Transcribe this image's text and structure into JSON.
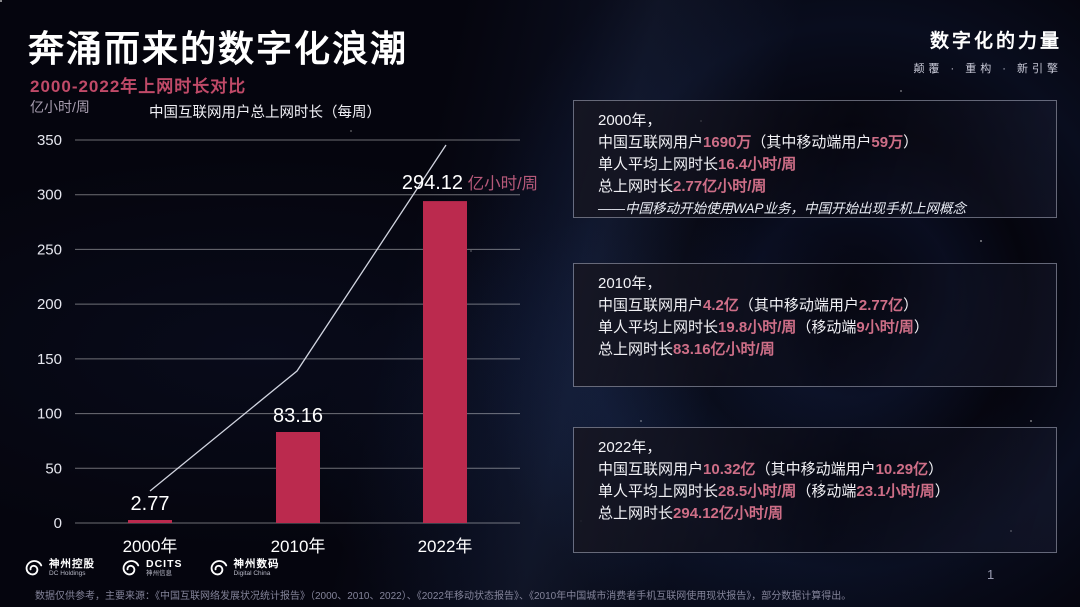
{
  "header": {
    "title": "奔涌而来的数字化浪潮",
    "subtitle": "2000-2022年上网时长对比"
  },
  "brand": {
    "title": "数字化的力量",
    "tagline": "颠覆 · 重构 · 新引擎"
  },
  "chart_data": {
    "type": "bar",
    "title": "中国互联网用户总上网时长（每周）",
    "unit_label": "亿小时/周",
    "categories": [
      "2000年",
      "2010年",
      "2022年"
    ],
    "values": [
      2.77,
      83.16,
      294.12
    ],
    "point_labels": [
      {
        "value": "2.77",
        "suffix": ""
      },
      {
        "value": "83.16",
        "suffix": ""
      },
      {
        "value": "294.12",
        "suffix": "亿小时/周"
      }
    ],
    "ylim": [
      0,
      350
    ],
    "yticks": [
      0,
      50,
      100,
      150,
      200,
      250,
      300,
      350
    ],
    "grid": true,
    "legend": false,
    "bar_color": "#bb2a4e",
    "trend_line": true
  },
  "panels": [
    {
      "title": "2000年，",
      "lines": [
        [
          {
            "t": "中国互联网用户"
          },
          {
            "t": "1690万",
            "accent": true
          },
          {
            "t": "（其中移动端用户"
          },
          {
            "t": "59万",
            "accent": true
          },
          {
            "t": "）"
          }
        ],
        [
          {
            "t": "单人平均上网时长"
          },
          {
            "t": "16.4小时/周",
            "accent": true
          }
        ],
        [
          {
            "t": "总上网时长"
          },
          {
            "t": "2.77亿小时/周",
            "accent": true
          }
        ]
      ],
      "note": "——中国移动开始使用WAP业务，中国开始出现手机上网概念"
    },
    {
      "title": "2010年，",
      "lines": [
        [
          {
            "t": "中国互联网用户"
          },
          {
            "t": "4.2亿",
            "accent": true
          },
          {
            "t": "（其中移动端用户"
          },
          {
            "t": "2.77亿",
            "accent": true
          },
          {
            "t": "）"
          }
        ],
        [
          {
            "t": "单人平均上网时长"
          },
          {
            "t": "19.8小时/周",
            "accent": true
          },
          {
            "t": "（移动端"
          },
          {
            "t": "9小时/周",
            "accent": true
          },
          {
            "t": "）"
          }
        ],
        [
          {
            "t": "总上网时长"
          },
          {
            "t": "83.16亿小时/周",
            "accent": true
          }
        ]
      ],
      "note": ""
    },
    {
      "title": "2022年，",
      "lines": [
        [
          {
            "t": "中国互联网用户"
          },
          {
            "t": "10.32亿",
            "accent": true
          },
          {
            "t": "（其中移动端用户"
          },
          {
            "t": "10.29亿",
            "accent": true
          },
          {
            "t": "）"
          }
        ],
        [
          {
            "t": "单人平均上网时长"
          },
          {
            "t": "28.5小时/周",
            "accent": true
          },
          {
            "t": "（移动端"
          },
          {
            "t": "23.1小时/周",
            "accent": true
          },
          {
            "t": "）"
          }
        ],
        [
          {
            "t": "总上网时长"
          },
          {
            "t": "294.12亿小时/周",
            "accent": true
          }
        ]
      ],
      "note": ""
    }
  ],
  "footer": {
    "logos": [
      {
        "name": "神州控股",
        "sub": "DC Holdings"
      },
      {
        "name": "DCITS",
        "sub": "神州信息"
      },
      {
        "name": "神州数码",
        "sub": "Digital China"
      }
    ],
    "footnote": "数据仅供参考，主要来源：《中国互联网络发展状况统计报告》（2000、2010、2022）、《2022年移动状态报告》、《2010年中国城市消费者手机互联网使用现状报告》，部分数据计算得出。",
    "page_number": "1"
  }
}
